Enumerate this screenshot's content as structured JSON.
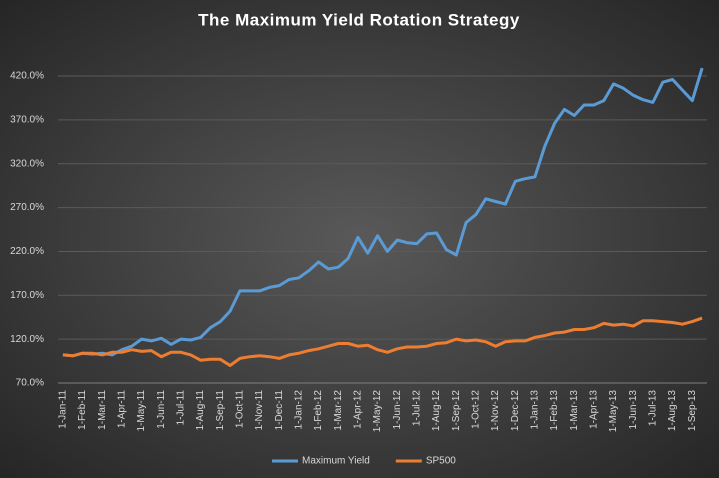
{
  "chart_data": {
    "type": "line",
    "title": "The Maximum Yield Rotation Strategy",
    "categories": [
      "1-Jan-11",
      null,
      "1-Feb-11",
      null,
      "1-Mar-11",
      null,
      "1-Apr-11",
      null,
      "1-May-11",
      null,
      "1-Jun-11",
      null,
      "1-Jul-11",
      null,
      "1-Aug-11",
      null,
      "1-Sep-11",
      null,
      "1-Oct-11",
      null,
      "1-Nov-11",
      null,
      "1-Dec-11",
      null,
      "1-Jan-12",
      null,
      "1-Feb-12",
      null,
      "1-Mar-12",
      null,
      "1-Apr-12",
      null,
      "1-May-12",
      null,
      "1-Jun-12",
      null,
      "1-Jul-12",
      null,
      "1-Aug-12",
      null,
      "1-Sep-12",
      null,
      "1-Oct-12",
      null,
      "1-Nov-12",
      null,
      "1-Dec-12",
      null,
      "1-Jan-13",
      null,
      "1-Feb-13",
      null,
      "1-Mar-13",
      null,
      "1-Apr-13",
      null,
      "1-May-13",
      null,
      "1-Jun-13",
      null,
      "1-Jul-13",
      null,
      "1-Aug-13",
      null,
      "1-Sep-13",
      null
    ],
    "series": [
      {
        "name": "Maximum Yield",
        "color": "#5b9bd5",
        "values": [
          102,
          101,
          104,
          103,
          104,
          102,
          108,
          112,
          120,
          118,
          121,
          114,
          120,
          119,
          122,
          133,
          140,
          152,
          175,
          175,
          175,
          179,
          181,
          188,
          190,
          198,
          208,
          200,
          202,
          212,
          236,
          218,
          238,
          220,
          233,
          230,
          229,
          240,
          241,
          222,
          216,
          253,
          262,
          280,
          277,
          274,
          300,
          303,
          305,
          340,
          366,
          382,
          375,
          387,
          387,
          392,
          411,
          406,
          398,
          393,
          390,
          413,
          416,
          404,
          392,
          429
        ]
      },
      {
        "name": "SP500",
        "color": "#ed7d31",
        "values": [
          102,
          101,
          104,
          104,
          102,
          105,
          105,
          108,
          106,
          107,
          100,
          105,
          105,
          102,
          96,
          97,
          97,
          90,
          98,
          100,
          101,
          100,
          98,
          102,
          104,
          107,
          109,
          112,
          115,
          115,
          112,
          113,
          108,
          105,
          109,
          111,
          111,
          112,
          115,
          116,
          120,
          118,
          119,
          117,
          112,
          117,
          118,
          118,
          122,
          124,
          127,
          128,
          131,
          131,
          133,
          138,
          136,
          137,
          135,
          141,
          141,
          140,
          139,
          137,
          140,
          144
        ]
      }
    ],
    "ylim": [
      70,
      440
    ],
    "yticks": [
      {
        "value": 70,
        "label": "70.0%"
      },
      {
        "value": 120,
        "label": "120.0%"
      },
      {
        "value": 170,
        "label": "170.0%"
      },
      {
        "value": 220,
        "label": "220.0%"
      },
      {
        "value": 270,
        "label": "270.0%"
      },
      {
        "value": 320,
        "label": "320.0%"
      },
      {
        "value": 370,
        "label": "370.0%"
      },
      {
        "value": 420,
        "label": "420.0%"
      }
    ],
    "grid": true,
    "legend": "bottom"
  }
}
